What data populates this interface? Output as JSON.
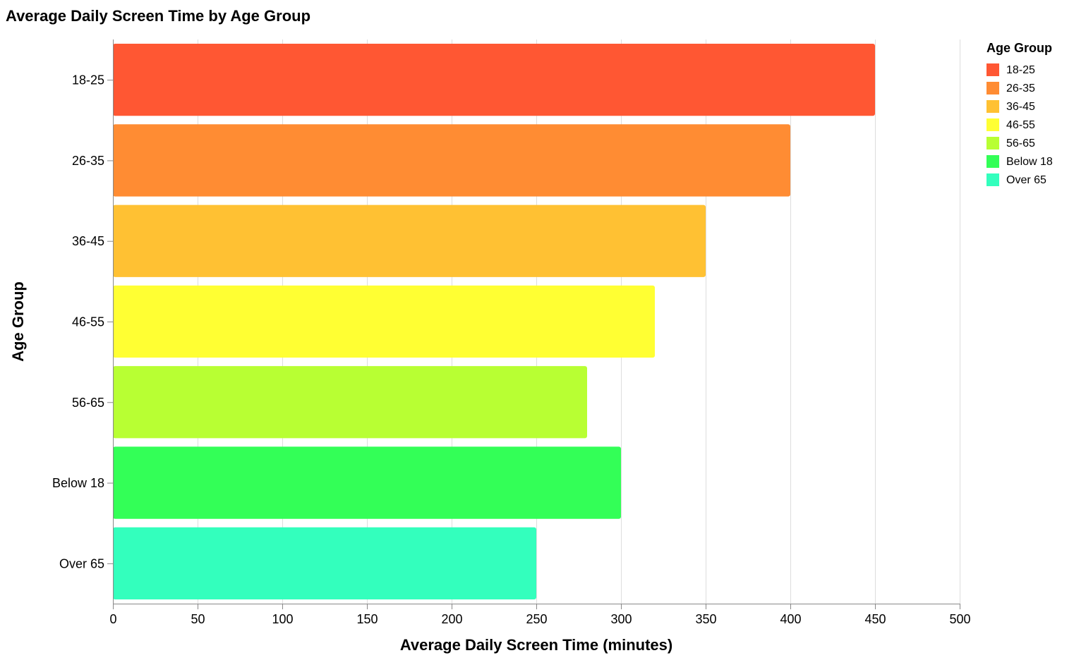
{
  "chart_data": {
    "type": "bar",
    "orientation": "horizontal",
    "title": "Average Daily Screen Time by Age Group",
    "xlabel": "Average Daily Screen Time (minutes)",
    "ylabel": "Age Group",
    "xlim": [
      0,
      500
    ],
    "x_ticks": [
      0,
      50,
      100,
      150,
      200,
      250,
      300,
      350,
      400,
      450,
      500
    ],
    "grid": true,
    "categories": [
      "18-25",
      "26-35",
      "36-45",
      "46-55",
      "56-65",
      "Below 18",
      "Over 65"
    ],
    "values": [
      450,
      400,
      350,
      320,
      280,
      300,
      250
    ],
    "colors": [
      "#ff5733",
      "#ff8c33",
      "#ffc133",
      "#ffff33",
      "#b8ff33",
      "#33ff57",
      "#33ffbd"
    ],
    "legend": {
      "title": "Age Group",
      "placement": "right",
      "entries": [
        "18-25",
        "26-35",
        "36-45",
        "46-55",
        "56-65",
        "Below 18",
        "Over 65"
      ]
    }
  }
}
